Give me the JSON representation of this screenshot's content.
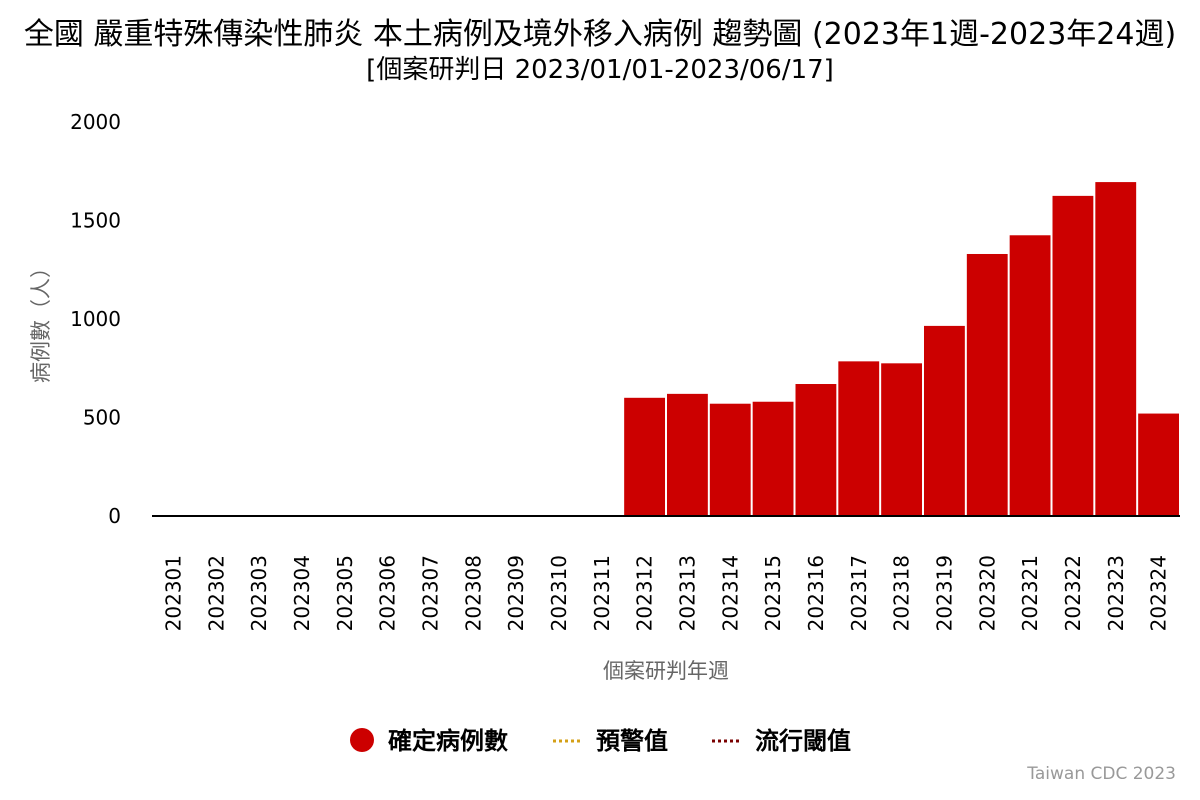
{
  "chart_data": {
    "type": "bar",
    "title": "全國 嚴重特殊傳染性肺炎 本土病例及境外移入病例 趨勢圖 (2023年1週-2023年24週)",
    "subtitle": "[個案研判日 2023/01/01-2023/06/17]",
    "xlabel": "個案研判年週",
    "ylabel": "病例數（人）",
    "ylim": [
      0,
      2000
    ],
    "yticks": [
      "0",
      "500",
      "1000",
      "1500",
      "2000"
    ],
    "categories": [
      "202301",
      "202302",
      "202303",
      "202304",
      "202305",
      "202306",
      "202307",
      "202308",
      "202309",
      "202310",
      "202311",
      "202312",
      "202313",
      "202314",
      "202315",
      "202316",
      "202317",
      "202318",
      "202319",
      "202320",
      "202321",
      "202322",
      "202323",
      "202324"
    ],
    "series": [
      {
        "name": "確定病例數",
        "color": "#cc0000",
        "values": [
          0,
          0,
          0,
          0,
          0,
          0,
          0,
          0,
          0,
          0,
          0,
          600,
          620,
          570,
          580,
          670,
          785,
          775,
          965,
          1330,
          1425,
          1625,
          1695,
          520
        ]
      }
    ],
    "legend": [
      {
        "label": "確定病例數",
        "symbol": "circle",
        "color": "#cc0000"
      },
      {
        "label": "預警值",
        "symbol": "dotted-line",
        "color": "#d4a017"
      },
      {
        "label": "流行閾值",
        "symbol": "dotted-line",
        "color": "#7a0000"
      }
    ],
    "legend_position": "bottom-center",
    "grid": false
  },
  "credit": "Taiwan CDC 2023"
}
